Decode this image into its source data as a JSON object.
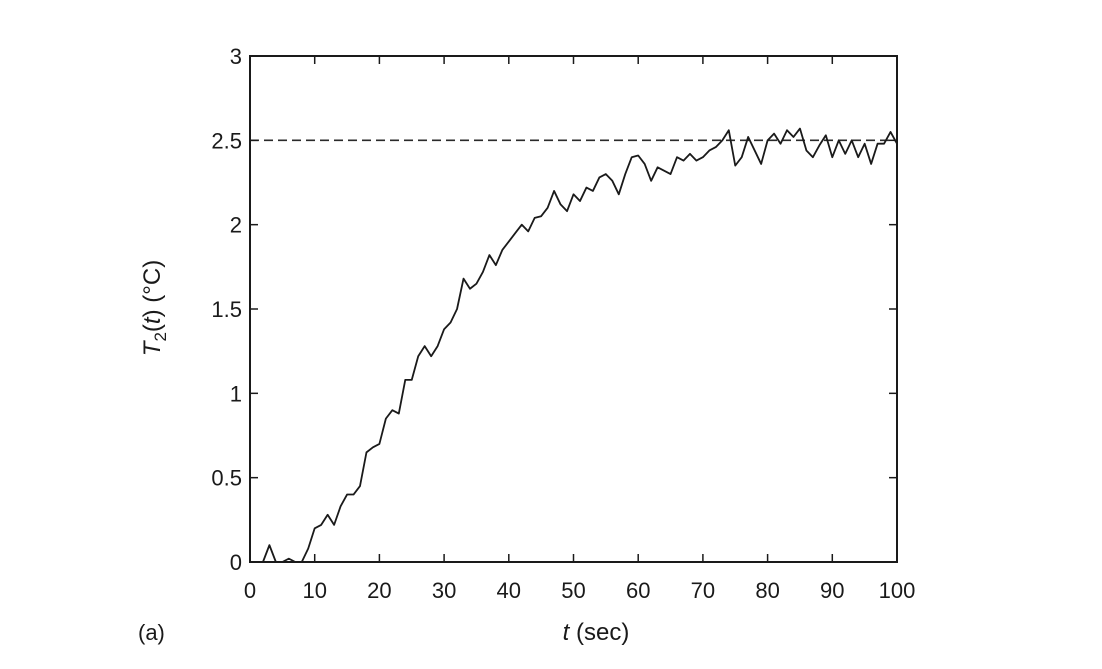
{
  "chart_data": {
    "type": "line",
    "panel_label": "(a)",
    "xlabel": {
      "italic": "t",
      "rest": " (sec)"
    },
    "ylabel": {
      "italic": "T",
      "sub": "2",
      "open": "(",
      "italic2": "t",
      "close": ")",
      "unit": " (°C)"
    },
    "xlim": [
      0,
      100
    ],
    "ylim": [
      0,
      3
    ],
    "x_ticks": [
      0,
      10,
      20,
      30,
      40,
      50,
      60,
      70,
      80,
      90,
      100
    ],
    "x_tick_labels": [
      "0",
      "10",
      "20",
      "30",
      "40",
      "50",
      "60",
      "70",
      "80",
      "90",
      "100"
    ],
    "y_ticks": [
      0,
      0.5,
      1,
      1.5,
      2,
      2.5,
      3
    ],
    "y_tick_labels": [
      "0",
      "0.5",
      "1",
      "1.5",
      "2",
      "2.5",
      "3"
    ],
    "grid": false,
    "reference_line": {
      "y": 2.5,
      "style": "dashed"
    },
    "series": [
      {
        "x": [
          0,
          1,
          2,
          3,
          4,
          5,
          6,
          7,
          8,
          9,
          10,
          11,
          12,
          13,
          14,
          15,
          16,
          17,
          18,
          19,
          20,
          21,
          22,
          23,
          24,
          25,
          26,
          27,
          28,
          29,
          30,
          31,
          32,
          33,
          34,
          35,
          36,
          37,
          38,
          39,
          40,
          41,
          42,
          43,
          44,
          45,
          46,
          47,
          48,
          49,
          50,
          51,
          52,
          53,
          54,
          55,
          56,
          57,
          58,
          59,
          60,
          61,
          62,
          63,
          64,
          65,
          66,
          67,
          68,
          69,
          70,
          71,
          72,
          73,
          74,
          75,
          76,
          77,
          78,
          79,
          80,
          81,
          82,
          83,
          84,
          85,
          86,
          87,
          88,
          89,
          90,
          91,
          92,
          93,
          94,
          95,
          96,
          97,
          98,
          99,
          100
        ],
        "y": [
          0,
          0,
          0,
          0.1,
          0,
          0,
          0.02,
          0,
          0,
          0.08,
          0.2,
          0.22,
          0.28,
          0.22,
          0.33,
          0.4,
          0.4,
          0.45,
          0.65,
          0.68,
          0.7,
          0.85,
          0.9,
          0.88,
          1.08,
          1.08,
          1.22,
          1.28,
          1.22,
          1.28,
          1.38,
          1.42,
          1.5,
          1.68,
          1.62,
          1.65,
          1.72,
          1.82,
          1.76,
          1.85,
          1.9,
          1.95,
          2.0,
          1.96,
          2.04,
          2.05,
          2.1,
          2.2,
          2.12,
          2.08,
          2.18,
          2.14,
          2.22,
          2.2,
          2.28,
          2.3,
          2.26,
          2.18,
          2.3,
          2.4,
          2.41,
          2.36,
          2.26,
          2.34,
          2.32,
          2.3,
          2.4,
          2.38,
          2.42,
          2.38,
          2.4,
          2.44,
          2.46,
          2.5,
          2.56,
          2.35,
          2.4,
          2.52,
          2.44,
          2.36,
          2.5,
          2.54,
          2.48,
          2.56,
          2.52,
          2.57,
          2.44,
          2.4,
          2.47,
          2.53,
          2.4,
          2.5,
          2.42,
          2.5,
          2.4,
          2.48,
          2.36,
          2.48,
          2.48,
          2.55,
          2.48
        ]
      }
    ]
  }
}
